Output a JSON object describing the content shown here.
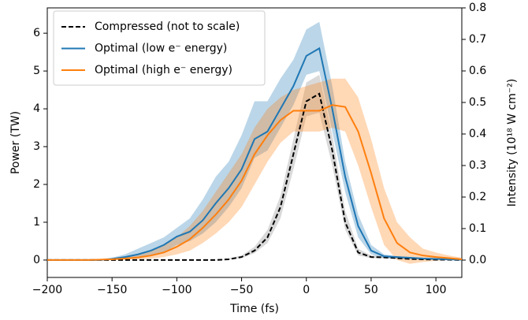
{
  "chart_data": {
    "type": "line",
    "x": [
      -200,
      -190,
      -180,
      -170,
      -160,
      -150,
      -140,
      -130,
      -120,
      -110,
      -100,
      -90,
      -80,
      -70,
      -60,
      -50,
      -40,
      -30,
      -20,
      -10,
      0,
      10,
      20,
      30,
      40,
      50,
      60,
      70,
      80,
      90,
      100,
      110,
      120
    ],
    "series": [
      {
        "name": "Compressed (not to scale)",
        "color": "#000000",
        "dash": true,
        "band_color": "#808080",
        "values": [
          0,
          0,
          0,
          0,
          0,
          0,
          0,
          0,
          0,
          0,
          0,
          0,
          0,
          0,
          0.02,
          0.08,
          0.25,
          0.6,
          1.4,
          2.8,
          4.2,
          4.4,
          2.9,
          1.0,
          0.2,
          0.08,
          0.07,
          0.05,
          0.03,
          0.02,
          0.01,
          0.01,
          0
        ],
        "lower": [
          0,
          0,
          0,
          0,
          0,
          0,
          0,
          0,
          0,
          0,
          0,
          0,
          0,
          0,
          0.01,
          0.05,
          0.18,
          0.45,
          1.1,
          2.4,
          3.8,
          3.9,
          2.5,
          0.8,
          0.12,
          0.05,
          0.05,
          0.03,
          0.02,
          0.01,
          0,
          0,
          0
        ],
        "upper": [
          0,
          0,
          0,
          0,
          0,
          0,
          0,
          0,
          0,
          0,
          0,
          0,
          0,
          0,
          0.04,
          0.12,
          0.35,
          0.8,
          1.7,
          3.2,
          4.7,
          4.9,
          3.3,
          1.3,
          0.3,
          0.12,
          0.1,
          0.08,
          0.05,
          0.03,
          0.02,
          0.01,
          0
        ]
      },
      {
        "name": "Optimal (low e⁻ energy)",
        "color": "#1f77b4",
        "band_color": "#1f77b4",
        "values": [
          0,
          0,
          0,
          0,
          0,
          0.03,
          0.08,
          0.15,
          0.25,
          0.4,
          0.62,
          0.75,
          1.05,
          1.5,
          1.9,
          2.4,
          3.2,
          3.4,
          4.0,
          4.6,
          5.4,
          5.6,
          4.0,
          2.2,
          0.9,
          0.25,
          0.1,
          0.08,
          0.06,
          0.04,
          0.03,
          0.02,
          0.01
        ],
        "lower": [
          0,
          0,
          0,
          0,
          0,
          0.01,
          0.03,
          0.06,
          0.12,
          0.2,
          0.4,
          0.5,
          0.7,
          1.0,
          1.4,
          1.9,
          2.7,
          2.9,
          3.5,
          4.1,
          4.9,
          5.0,
          3.4,
          1.8,
          0.6,
          0.15,
          0.05,
          0.04,
          0.03,
          0.02,
          0.01,
          0.01,
          0
        ],
        "upper": [
          0,
          0,
          0,
          0,
          0.01,
          0.06,
          0.15,
          0.3,
          0.45,
          0.6,
          0.85,
          1.1,
          1.6,
          2.2,
          2.6,
          3.3,
          4.2,
          4.2,
          4.8,
          5.3,
          6.1,
          6.3,
          4.6,
          2.6,
          1.2,
          0.4,
          0.15,
          0.1,
          0.08,
          0.06,
          0.05,
          0.04,
          0.02
        ]
      },
      {
        "name": "Optimal (high e⁻ energy)",
        "color": "#ff7f0e",
        "band_color": "#ff7f0e",
        "values": [
          0,
          0,
          0,
          0,
          0.01,
          0.02,
          0.04,
          0.07,
          0.12,
          0.2,
          0.35,
          0.55,
          0.85,
          1.2,
          1.6,
          2.1,
          2.8,
          3.3,
          3.7,
          3.95,
          3.95,
          3.95,
          4.1,
          4.05,
          3.4,
          2.3,
          1.1,
          0.45,
          0.2,
          0.12,
          0.08,
          0.05,
          0.02
        ],
        "lower": [
          0,
          0,
          0,
          0,
          0,
          0,
          0.01,
          0.02,
          0.04,
          0.08,
          0.15,
          0.25,
          0.45,
          0.7,
          1.0,
          1.4,
          2.0,
          2.6,
          3.1,
          3.4,
          3.4,
          3.4,
          3.5,
          3.4,
          2.5,
          1.4,
          0.4,
          0.0,
          -0.1,
          -0.05,
          -0.02,
          0,
          0
        ],
        "upper": [
          0,
          0,
          0,
          0,
          0.02,
          0.04,
          0.08,
          0.15,
          0.25,
          0.4,
          0.6,
          0.9,
          1.3,
          1.8,
          2.3,
          2.8,
          3.5,
          4.0,
          4.3,
          4.5,
          4.6,
          4.7,
          4.8,
          4.8,
          4.3,
          3.2,
          1.9,
          1.0,
          0.6,
          0.3,
          0.2,
          0.12,
          0.06
        ]
      }
    ],
    "x_label": "Time (fs)",
    "y_label": "Power (TW)",
    "y2_label": "Intensity (10¹⁸ W cm⁻²)",
    "xlim": [
      -200,
      120
    ],
    "xticks": [
      {
        "value": -200,
        "label": "−200"
      },
      {
        "value": -150,
        "label": "−150"
      },
      {
        "value": -100,
        "label": "−100"
      },
      {
        "value": -50,
        "label": "−50"
      },
      0,
      50,
      100
    ],
    "ylim": [
      -0.46,
      6.67
    ],
    "yticks": [
      0,
      1,
      2,
      3,
      4,
      5,
      6
    ],
    "y2lim": [
      -0.055,
      0.8
    ],
    "y2ticks": [
      {
        "value": 0,
        "label": "0.0"
      },
      0.1,
      0.2,
      0.3,
      0.4,
      0.5,
      0.6,
      0.7,
      0.8
    ],
    "legend": "upper left",
    "grid": false
  }
}
